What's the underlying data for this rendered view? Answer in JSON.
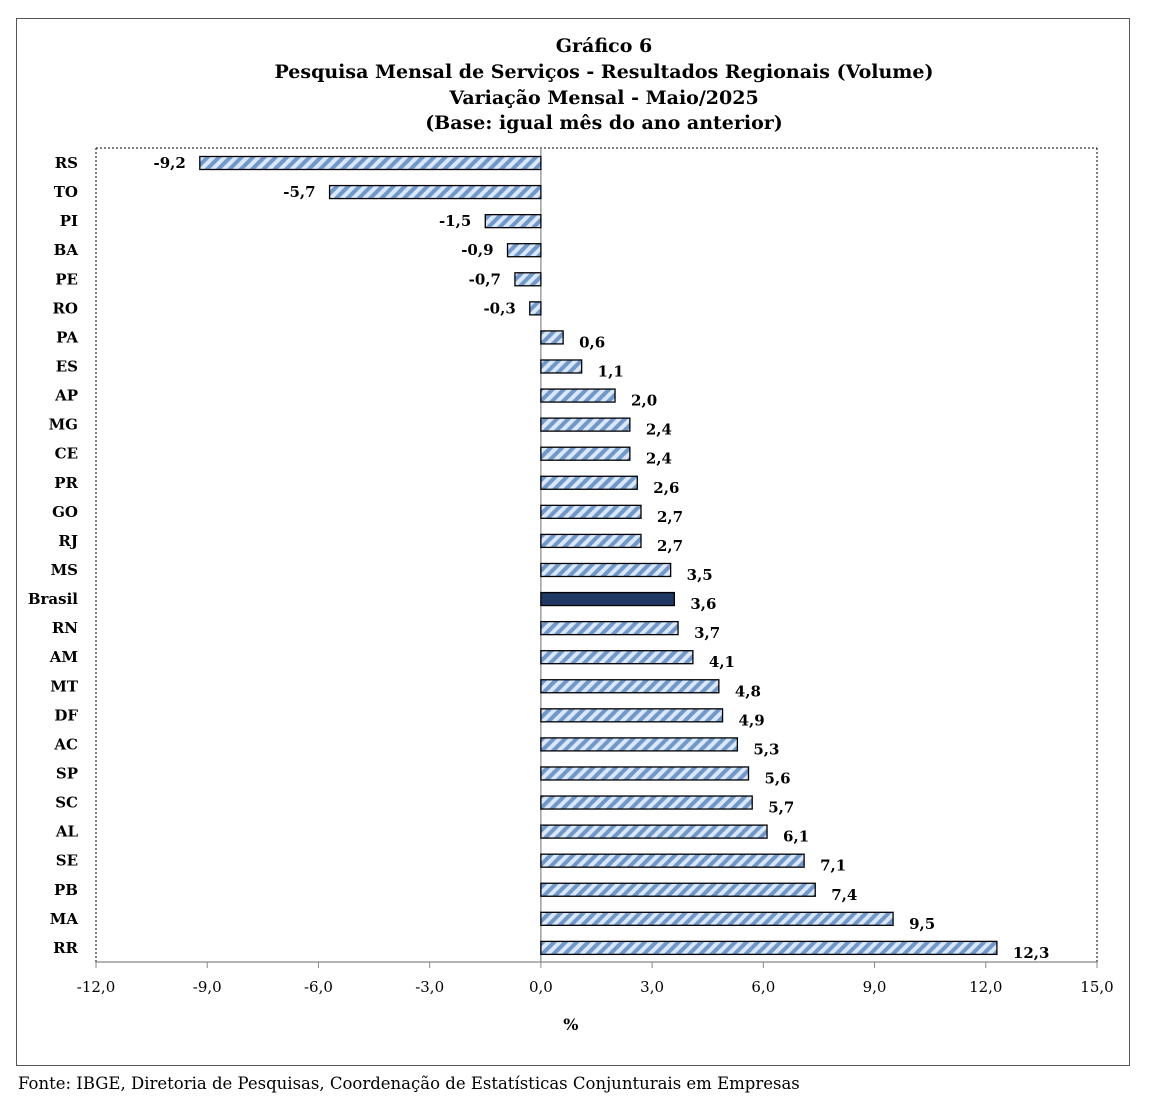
{
  "chart_data": {
    "type": "bar",
    "orientation": "horizontal",
    "title": [
      "Gráfico 6",
      "Pesquisa  Mensal de Serviços - Resultados Regionais (Volume)",
      "Variação Mensal - Maio/2025",
      "(Base: igual mês do ano anterior)"
    ],
    "categories": [
      "RS",
      "TO",
      "PI",
      "BA",
      "PE",
      "RO",
      "PA",
      "ES",
      "AP",
      "MG",
      "CE",
      "PR",
      "GO",
      "RJ",
      "MS",
      "Brasil",
      "RN",
      "AM",
      "MT",
      "DF",
      "AC",
      "SP",
      "SC",
      "AL",
      "SE",
      "PB",
      "MA",
      "RR"
    ],
    "values": [
      -9.2,
      -5.7,
      -1.5,
      -0.9,
      -0.7,
      -0.3,
      0.6,
      1.1,
      2.0,
      2.4,
      2.4,
      2.6,
      2.7,
      2.7,
      3.5,
      3.6,
      3.7,
      4.1,
      4.8,
      4.9,
      5.3,
      5.6,
      5.7,
      6.1,
      7.1,
      7.4,
      9.5,
      12.3
    ],
    "value_labels": [
      "-9,2",
      "-5,7",
      "-1,5",
      "-0,9",
      "-0,7",
      "-0,3",
      "0,6",
      "1,1",
      "2,0",
      "2,4",
      "2,4",
      "2,6",
      "2,7",
      "2,7",
      "3,5",
      "3,6",
      "3,7",
      "4,1",
      "4,8",
      "4,9",
      "5,3",
      "5,6",
      "5,7",
      "6,1",
      "7,1",
      "7,4",
      "9,5",
      "12,3"
    ],
    "highlight_category": "Brasil",
    "xlim": [
      -12,
      15
    ],
    "xticks": [
      -12,
      -9,
      -6,
      -3,
      0,
      3,
      6,
      9,
      12,
      15
    ],
    "xtick_labels": [
      "-12,0",
      "-9,0",
      "-6,0",
      "-3,0",
      "0,0",
      "3,0",
      "6,0",
      "9,0",
      "12,0",
      "15,0"
    ],
    "xlabel": "%",
    "ylabel": "",
    "grid": false,
    "legend": "none",
    "colors": {
      "bar_stripe": "#6f98cc",
      "bar_background": "#dbe7f5",
      "highlight_fill": "#1f3864",
      "bar_edge": "#000000"
    }
  },
  "source": "Fonte: IBGE, Diretoria de Pesquisas, Coordenação de Estatísticas Conjunturais em Empresas"
}
